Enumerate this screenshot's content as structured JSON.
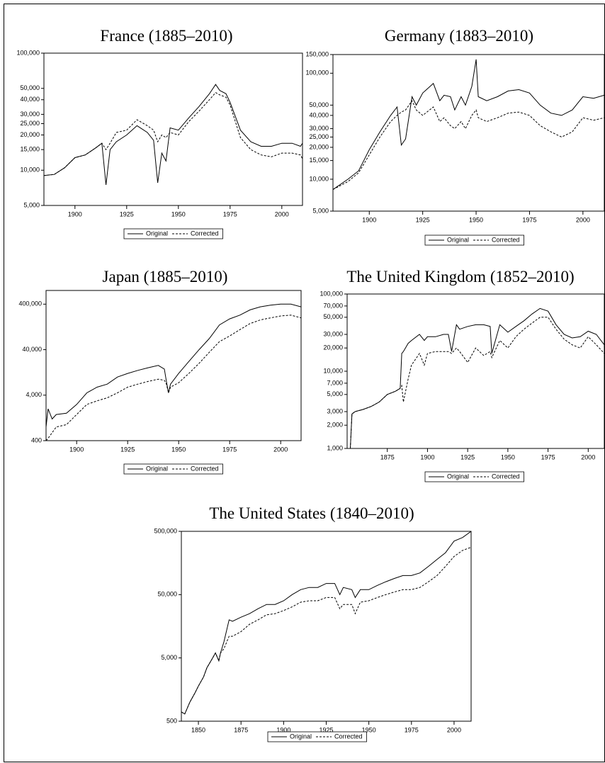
{
  "chart_data": [
    {
      "type": "line",
      "title": "France (1885–2010)",
      "log_y": true,
      "legend": "bottom",
      "x": [
        1885,
        1890,
        1895,
        1900,
        1905,
        1910,
        1913,
        1915,
        1917,
        1920,
        1925,
        1930,
        1935,
        1938,
        1940,
        1942,
        1944,
        1946,
        1950,
        1955,
        1960,
        1965,
        1968,
        1970,
        1973,
        1975,
        1980,
        1985,
        1990,
        1995,
        2000,
        2005,
        2009,
        2010
      ],
      "series": [
        {
          "name": "Original",
          "color": "#000000",
          "line_style": "solid",
          "values": [
            9000,
            9200,
            10500,
            12800,
            13500,
            15500,
            17000,
            7500,
            15000,
            17500,
            20000,
            24000,
            21000,
            18000,
            7800,
            14000,
            12000,
            23000,
            22000,
            28000,
            35000,
            45000,
            54000,
            48000,
            45000,
            38000,
            22000,
            17500,
            16000,
            16000,
            17000,
            17000,
            16000,
            17000
          ]
        },
        {
          "name": "Corrected",
          "color": "#000000",
          "line_style": "dashed",
          "values": [
            9000,
            9200,
            10500,
            12800,
            13500,
            15500,
            17000,
            15000,
            17000,
            21000,
            22000,
            27000,
            24000,
            22000,
            17500,
            20000,
            19000,
            21000,
            20000,
            26000,
            32000,
            40000,
            46000,
            44000,
            42000,
            36000,
            19000,
            15000,
            13500,
            13000,
            14000,
            14000,
            13500,
            12500
          ]
        }
      ],
      "xlim": [
        1885,
        2010
      ],
      "xticks": [
        1900,
        1925,
        1950,
        1975,
        2000
      ],
      "ylim": [
        5000,
        100000
      ],
      "yticks": [
        {
          "value": 5000,
          "label": "5,000"
        },
        {
          "value": 10000,
          "label": "10,000"
        },
        {
          "value": 15000,
          "label": "15,000"
        },
        {
          "value": 20000,
          "label": "20,000"
        },
        {
          "value": 25000,
          "label": "25,000"
        },
        {
          "value": 30000,
          "label": "30,000"
        },
        {
          "value": 40000,
          "label": "40,000"
        },
        {
          "value": 50000,
          "label": "50,000"
        },
        {
          "value": 100000,
          "label": "100,000"
        }
      ]
    },
    {
      "type": "line",
      "title": "Germany (1883–2010)",
      "log_y": true,
      "legend": "bottom",
      "x": [
        1883,
        1890,
        1895,
        1900,
        1905,
        1910,
        1913,
        1915,
        1917,
        1920,
        1922,
        1925,
        1930,
        1933,
        1935,
        1938,
        1940,
        1943,
        1945,
        1948,
        1950,
        1951,
        1955,
        1960,
        1965,
        1970,
        1975,
        1980,
        1985,
        1990,
        1995,
        2000,
        2005,
        2010
      ],
      "series": [
        {
          "name": "Original",
          "color": "#000000",
          "line_style": "solid",
          "values": [
            8000,
            10000,
            12000,
            19000,
            28000,
            40000,
            48000,
            21000,
            24000,
            60000,
            50000,
            65000,
            80000,
            55000,
            62000,
            60000,
            45000,
            60000,
            50000,
            75000,
            135000,
            60000,
            55000,
            60000,
            68000,
            70000,
            65000,
            50000,
            42000,
            40000,
            45000,
            60000,
            58000,
            62000
          ]
        },
        {
          "name": "Corrected",
          "color": "#000000",
          "line_style": "dashed",
          "values": [
            8000,
            9500,
            11500,
            17000,
            25000,
            35000,
            40000,
            43000,
            45000,
            55000,
            45000,
            40000,
            48000,
            35000,
            38000,
            32000,
            30000,
            35000,
            30000,
            40000,
            45000,
            38000,
            35000,
            38000,
            42000,
            43000,
            40000,
            32000,
            28000,
            25000,
            28000,
            38000,
            36000,
            38000
          ]
        }
      ],
      "xlim": [
        1883,
        2010
      ],
      "xticks": [
        1900,
        1925,
        1950,
        1975,
        2000
      ],
      "ylim": [
        5000,
        150000
      ],
      "yticks": [
        {
          "value": 5000,
          "label": "5,000"
        },
        {
          "value": 10000,
          "label": "10,000"
        },
        {
          "value": 15000,
          "label": "15,000"
        },
        {
          "value": 20000,
          "label": "20,000"
        },
        {
          "value": 25000,
          "label": "25,000"
        },
        {
          "value": 30000,
          "label": "30,000"
        },
        {
          "value": 40000,
          "label": "40,000"
        },
        {
          "value": 50000,
          "label": "50,000"
        },
        {
          "value": 100000,
          "label": "100,000"
        },
        {
          "value": 150000,
          "label": "150,000"
        }
      ]
    },
    {
      "type": "line",
      "title": "Japan (1885–2010)",
      "log_y": true,
      "legend": "bottom",
      "x": [
        1885,
        1886,
        1888,
        1890,
        1895,
        1900,
        1905,
        1910,
        1915,
        1920,
        1925,
        1930,
        1935,
        1940,
        1943,
        1944,
        1945,
        1946,
        1950,
        1955,
        1960,
        1965,
        1970,
        1975,
        1980,
        1985,
        1990,
        1995,
        2000,
        2005,
        2010
      ],
      "series": [
        {
          "name": "Original",
          "color": "#000000",
          "line_style": "solid",
          "values": [
            800,
            2000,
            1200,
            1500,
            1600,
            2500,
            4500,
            6000,
            7000,
            10000,
            12000,
            14000,
            16000,
            18000,
            15000,
            8000,
            4500,
            7000,
            12000,
            22000,
            40000,
            70000,
            140000,
            190000,
            230000,
            300000,
            350000,
            380000,
            400000,
            400000,
            350000
          ]
        },
        {
          "name": "Corrected",
          "color": "#000000",
          "line_style": "dashed",
          "values": [
            400,
            450,
            600,
            800,
            900,
            1500,
            2500,
            3000,
            3500,
            4500,
            6000,
            7000,
            8000,
            9000,
            8500,
            7000,
            4500,
            6000,
            7500,
            12000,
            20000,
            35000,
            60000,
            80000,
            110000,
            150000,
            180000,
            200000,
            220000,
            230000,
            200000
          ]
        }
      ],
      "xlim": [
        1885,
        2010
      ],
      "xticks": [
        1900,
        1925,
        1950,
        1975,
        2000
      ],
      "ylim": [
        400,
        800000
      ],
      "yticks": [
        400,
        {
          "value": 4000,
          "label": "4,000"
        },
        {
          "value": 40000,
          "label": "40,000"
        },
        {
          "value": 400000,
          "label": "400,000"
        }
      ]
    },
    {
      "type": "line",
      "title": "The United Kingdom (1852–2010)",
      "log_y": true,
      "legend": "bottom",
      "x": [
        1852,
        1853,
        1855,
        1860,
        1865,
        1870,
        1875,
        1880,
        1883,
        1884,
        1885,
        1888,
        1890,
        1895,
        1898,
        1900,
        1905,
        1910,
        1913,
        1915,
        1918,
        1920,
        1925,
        1930,
        1935,
        1939,
        1940,
        1945,
        1950,
        1955,
        1960,
        1965,
        1970,
        1975,
        1980,
        1985,
        1990,
        1995,
        2000,
        2005,
        2010
      ],
      "series": [
        {
          "name": "Original",
          "color": "#000000",
          "line_style": "solid",
          "values": [
            1000,
            2800,
            3000,
            3200,
            3500,
            4000,
            5000,
            5500,
            6000,
            17000,
            18000,
            23000,
            25000,
            30000,
            25000,
            28000,
            28000,
            30000,
            30000,
            18000,
            40000,
            35000,
            38000,
            40000,
            40000,
            38000,
            17000,
            40000,
            32000,
            38000,
            45000,
            55000,
            65000,
            60000,
            40000,
            30000,
            27000,
            28000,
            33000,
            30000,
            22000
          ]
        },
        {
          "name": "Corrected",
          "color": "#000000",
          "line_style": "dashed",
          "values": [
            1000,
            2800,
            3000,
            3200,
            3500,
            4000,
            5000,
            5500,
            6000,
            6500,
            4000,
            8000,
            12000,
            17000,
            12000,
            17000,
            18000,
            18000,
            18000,
            17000,
            20000,
            18000,
            13000,
            20000,
            16000,
            18000,
            15000,
            25000,
            20000,
            28000,
            35000,
            42000,
            50000,
            50000,
            35000,
            26000,
            22000,
            20000,
            28000,
            22000,
            17000
          ]
        }
      ],
      "xlim": [
        1850,
        2010
      ],
      "xticks": [
        1875,
        1900,
        1925,
        1950,
        1975,
        2000
      ],
      "ylim": [
        1000,
        100000
      ],
      "yticks": [
        {
          "value": 1000,
          "label": "1,000"
        },
        {
          "value": 2000,
          "label": "2,000"
        },
        {
          "value": 3000,
          "label": "3,000"
        },
        {
          "value": 5000,
          "label": "5,000"
        },
        {
          "value": 7000,
          "label": "7,000"
        },
        {
          "value": 10000,
          "label": "10,000"
        },
        {
          "value": 20000,
          "label": "20,000"
        },
        {
          "value": 30000,
          "label": "30,000"
        },
        {
          "value": 50000,
          "label": "50,000"
        },
        {
          "value": 70000,
          "label": "70,000"
        },
        {
          "value": 100000,
          "label": "100,000"
        }
      ]
    },
    {
      "type": "line",
      "title": "The United States (1840–2010)",
      "log_y": true,
      "legend": "bottom",
      "x": [
        1840,
        1842,
        1845,
        1848,
        1850,
        1853,
        1855,
        1858,
        1860,
        1862,
        1863,
        1865,
        1868,
        1870,
        1875,
        1880,
        1885,
        1890,
        1895,
        1900,
        1905,
        1910,
        1915,
        1920,
        1925,
        1930,
        1933,
        1935,
        1940,
        1942,
        1945,
        1950,
        1955,
        1960,
        1965,
        1970,
        1975,
        1980,
        1985,
        1990,
        1995,
        2000,
        2005,
        2010
      ],
      "series": [
        {
          "name": "Original",
          "color": "#000000",
          "line_style": "solid",
          "values": [
            700,
            650,
            1000,
            1400,
            1800,
            2500,
            3500,
            4800,
            6000,
            4500,
            6000,
            9000,
            20000,
            19000,
            22000,
            25000,
            30000,
            35000,
            35000,
            40000,
            50000,
            60000,
            65000,
            65000,
            75000,
            75000,
            50000,
            65000,
            60000,
            45000,
            60000,
            60000,
            70000,
            80000,
            90000,
            100000,
            100000,
            110000,
            140000,
            180000,
            230000,
            350000,
            400000,
            500000
          ]
        },
        {
          "name": "Corrected",
          "color": "#000000",
          "line_style": "dashed",
          "values": [
            700,
            650,
            1000,
            1400,
            1800,
            2500,
            3500,
            4800,
            6000,
            4500,
            6000,
            7000,
            11000,
            11000,
            13000,
            17000,
            20000,
            24000,
            25000,
            28000,
            32000,
            38000,
            40000,
            40000,
            45000,
            45000,
            30000,
            35000,
            35000,
            25000,
            38000,
            40000,
            45000,
            50000,
            55000,
            60000,
            60000,
            65000,
            80000,
            100000,
            140000,
            200000,
            250000,
            280000
          ]
        }
      ],
      "xlim": [
        1840,
        2010
      ],
      "xticks": [
        1850,
        1875,
        1900,
        1925,
        1950,
        1975,
        2000
      ],
      "ylim": [
        500,
        500000
      ],
      "yticks": [
        500,
        {
          "value": 5000,
          "label": "5,000"
        },
        {
          "value": 50000,
          "label": "50,000"
        },
        {
          "value": 500000,
          "label": "500,000"
        }
      ]
    }
  ]
}
